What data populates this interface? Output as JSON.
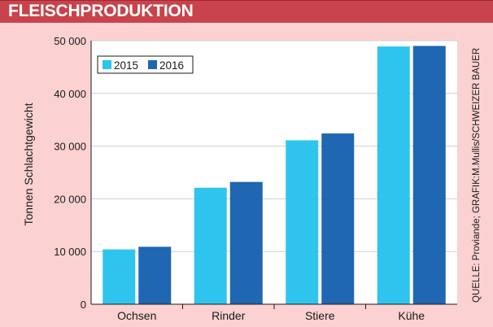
{
  "header": {
    "title": "FLEISCHPRODUKTION"
  },
  "source": "QUELLE: Proviande; GRAFIK:M.Mullis/SCHWEIZER BAUER",
  "colors": {
    "header_bg": "#c8434b",
    "panel_bg": "#fbd1d2",
    "series_2015": "#2ec4ee",
    "series_2016": "#1f66b3"
  },
  "chart_data": {
    "type": "bar",
    "title": "FLEISCHPRODUKTION",
    "xlabel": "",
    "ylabel": "Tonnen Schlachtgewicht",
    "categories": [
      "Ochsen",
      "Rinder",
      "Stiere",
      "Kühe"
    ],
    "series": [
      {
        "name": "2015",
        "values": [
          10400,
          22100,
          31100,
          48900
        ]
      },
      {
        "name": "2016",
        "values": [
          10900,
          23200,
          32400,
          49000
        ]
      }
    ],
    "ylim": [
      0,
      50000
    ],
    "yticks": [
      0,
      10000,
      20000,
      30000,
      40000,
      50000
    ],
    "ytick_labels": [
      "0",
      "10 000",
      "20 000",
      "30 000",
      "40 000",
      "50 000"
    ],
    "grid": true,
    "legend": {
      "position": "top-left",
      "entries": [
        "2015",
        "2016"
      ]
    }
  }
}
